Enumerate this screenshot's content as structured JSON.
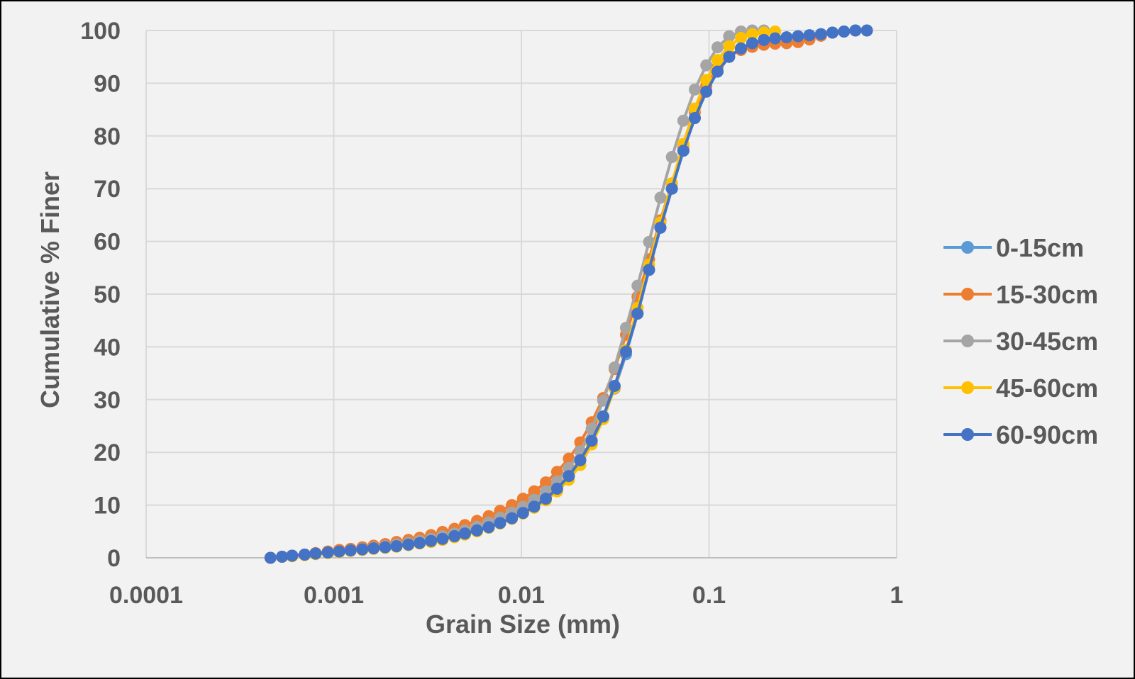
{
  "chart_data": {
    "type": "line",
    "title": "",
    "xlabel": "Grain Size (mm)",
    "ylabel": "Cumulative % Finer",
    "xscale": "log",
    "xlim": [
      0.0001,
      1
    ],
    "ylim": [
      0,
      100
    ],
    "xticks": [
      0.0001,
      0.001,
      0.01,
      0.1,
      1
    ],
    "xtick_labels": [
      "0.0001",
      "0.001",
      "0.01",
      "0.1",
      "1"
    ],
    "yticks": [
      0,
      10,
      20,
      30,
      40,
      50,
      60,
      70,
      80,
      90,
      100
    ],
    "ytick_labels": [
      "0",
      "10",
      "20",
      "30",
      "40",
      "50",
      "60",
      "70",
      "80",
      "90",
      "100"
    ],
    "grid": true,
    "legend_position": "right",
    "markers": "circle",
    "series": [
      {
        "name": "0-15cm",
        "color": "#5b9bd5",
        "x": [
          0.00046,
          0.00053,
          0.0006,
          0.0007,
          0.0008,
          0.00093,
          0.00107,
          0.00123,
          0.00142,
          0.00163,
          0.00188,
          0.00216,
          0.0025,
          0.00287,
          0.0033,
          0.0038,
          0.0044,
          0.005,
          0.0058,
          0.0067,
          0.0077,
          0.0089,
          0.0102,
          0.0117,
          0.0135,
          0.0155,
          0.0179,
          0.0206,
          0.0237,
          0.0273,
          0.0314,
          0.0361,
          0.0416,
          0.0479,
          0.0551,
          0.0634,
          0.073,
          0.084,
          0.0967,
          0.111,
          0.128,
          0.148,
          0.17,
          0.196,
          0.225,
          0.259,
          0.298,
          0.343,
          0.395,
          0.455,
          0.524,
          0.603,
          0.694
        ],
        "y": [
          0,
          0.2,
          0.4,
          0.6,
          0.8,
          1.0,
          1.2,
          1.4,
          1.6,
          1.8,
          2.0,
          2.2,
          2.5,
          2.8,
          3.2,
          3.6,
          4.1,
          4.6,
          5.2,
          5.8,
          6.6,
          7.5,
          8.5,
          9.7,
          11.2,
          13.1,
          15.5,
          18.5,
          22.2,
          26.8,
          32.1,
          38.6,
          46.3,
          54.6,
          62.6,
          70.0,
          77.2,
          83.4,
          88.4,
          92.2,
          95.0,
          96.6,
          97.6,
          98.2,
          98.5,
          98.7,
          98.9,
          99.1,
          99.3,
          99.6,
          99.8,
          100,
          100
        ]
      },
      {
        "name": "15-30cm",
        "color": "#ed7d31",
        "x": [
          0.00046,
          0.00053,
          0.0006,
          0.0007,
          0.0008,
          0.00093,
          0.00107,
          0.00123,
          0.00142,
          0.00163,
          0.00188,
          0.00216,
          0.0025,
          0.00287,
          0.0033,
          0.0038,
          0.0044,
          0.005,
          0.0058,
          0.0067,
          0.0077,
          0.0089,
          0.0102,
          0.0117,
          0.0135,
          0.0155,
          0.0179,
          0.0206,
          0.0237,
          0.0273,
          0.0314,
          0.0361,
          0.0416,
          0.0479,
          0.0551,
          0.0634,
          0.073,
          0.084,
          0.0967,
          0.111,
          0.128,
          0.148,
          0.17,
          0.196,
          0.225,
          0.259,
          0.298,
          0.343,
          0.395
        ],
        "y": [
          0,
          0.2,
          0.4,
          0.6,
          0.9,
          1.2,
          1.5,
          1.7,
          2.0,
          2.3,
          2.6,
          3.0,
          3.4,
          3.8,
          4.3,
          4.9,
          5.5,
          6.2,
          7.0,
          7.9,
          8.9,
          10.0,
          11.2,
          12.6,
          14.3,
          16.3,
          18.8,
          21.9,
          25.7,
          30.3,
          35.8,
          42.3,
          49.5,
          56.6,
          64.0,
          71.0,
          78.0,
          84.5,
          89.5,
          93.0,
          95.3,
          96.3,
          96.9,
          97.3,
          97.5,
          97.6,
          97.8,
          98.3,
          99.0
        ]
      },
      {
        "name": "30-45cm",
        "color": "#a5a5a5",
        "x": [
          0.00046,
          0.00053,
          0.0006,
          0.0007,
          0.0008,
          0.00093,
          0.00107,
          0.00123,
          0.00142,
          0.00163,
          0.00188,
          0.00216,
          0.0025,
          0.00287,
          0.0033,
          0.0038,
          0.0044,
          0.005,
          0.0058,
          0.0067,
          0.0077,
          0.0089,
          0.0102,
          0.0117,
          0.0135,
          0.0155,
          0.0179,
          0.0206,
          0.0237,
          0.0273,
          0.0314,
          0.0361,
          0.0416,
          0.0479,
          0.0551,
          0.0634,
          0.073,
          0.084,
          0.0967,
          0.111,
          0.128,
          0.148,
          0.17,
          0.196
        ],
        "y": [
          0,
          0.2,
          0.4,
          0.6,
          0.8,
          1.0,
          1.2,
          1.4,
          1.7,
          1.9,
          2.2,
          2.5,
          2.8,
          3.2,
          3.6,
          4.1,
          4.6,
          5.2,
          5.9,
          6.7,
          7.6,
          8.6,
          9.7,
          11.0,
          12.6,
          14.5,
          17.0,
          20.2,
          24.5,
          29.8,
          36.1,
          43.6,
          51.6,
          59.9,
          68.3,
          76.0,
          82.9,
          88.8,
          93.4,
          96.8,
          98.9,
          99.8,
          100,
          100
        ]
      },
      {
        "name": "45-60cm",
        "color": "#ffc000",
        "x": [
          0.00046,
          0.00053,
          0.0006,
          0.0007,
          0.0008,
          0.00093,
          0.00107,
          0.00123,
          0.00142,
          0.00163,
          0.00188,
          0.00216,
          0.0025,
          0.00287,
          0.0033,
          0.0038,
          0.0044,
          0.005,
          0.0058,
          0.0067,
          0.0077,
          0.0089,
          0.0102,
          0.0117,
          0.0135,
          0.0155,
          0.0179,
          0.0206,
          0.0237,
          0.0273,
          0.0314,
          0.0361,
          0.0416,
          0.0479,
          0.0551,
          0.0634,
          0.073,
          0.084,
          0.0967,
          0.111,
          0.128,
          0.148,
          0.17,
          0.196,
          0.225
        ],
        "y": [
          0,
          0.2,
          0.3,
          0.5,
          0.7,
          0.9,
          1.1,
          1.3,
          1.5,
          1.7,
          1.9,
          2.1,
          2.4,
          2.7,
          3.0,
          3.4,
          3.9,
          4.4,
          5.0,
          5.7,
          6.5,
          7.4,
          8.4,
          9.5,
          10.9,
          12.6,
          14.8,
          17.6,
          21.5,
          26.3,
          32.2,
          39.4,
          47.4,
          55.6,
          63.6,
          71.0,
          78.5,
          85.2,
          90.6,
          94.4,
          97.0,
          98.6,
          99.3,
          99.6,
          99.8
        ]
      },
      {
        "name": "60-90cm",
        "color": "#4472c4",
        "x": [
          0.00046,
          0.00053,
          0.0006,
          0.0007,
          0.0008,
          0.00093,
          0.00107,
          0.00123,
          0.00142,
          0.00163,
          0.00188,
          0.00216,
          0.0025,
          0.00287,
          0.0033,
          0.0038,
          0.0044,
          0.005,
          0.0058,
          0.0067,
          0.0077,
          0.0089,
          0.0102,
          0.0117,
          0.0135,
          0.0155,
          0.0179,
          0.0206,
          0.0237,
          0.0273,
          0.0314,
          0.0361,
          0.0416,
          0.0479,
          0.0551,
          0.0634,
          0.073,
          0.084,
          0.0967,
          0.111,
          0.128,
          0.148,
          0.17,
          0.196,
          0.225,
          0.259,
          0.298,
          0.343,
          0.395,
          0.455,
          0.524,
          0.603,
          0.694
        ],
        "y": [
          0,
          0.2,
          0.4,
          0.6,
          0.8,
          1.0,
          1.2,
          1.4,
          1.6,
          1.8,
          2.0,
          2.2,
          2.5,
          2.8,
          3.2,
          3.6,
          4.1,
          4.6,
          5.2,
          5.8,
          6.6,
          7.5,
          8.5,
          9.7,
          11.2,
          13.1,
          15.5,
          18.5,
          22.2,
          26.8,
          32.6,
          39.1,
          46.3,
          54.6,
          62.6,
          70.0,
          77.2,
          83.4,
          88.4,
          92.2,
          95.0,
          96.6,
          97.6,
          98.2,
          98.5,
          98.7,
          98.9,
          99.1,
          99.3,
          99.6,
          99.8,
          100,
          100
        ]
      }
    ]
  }
}
